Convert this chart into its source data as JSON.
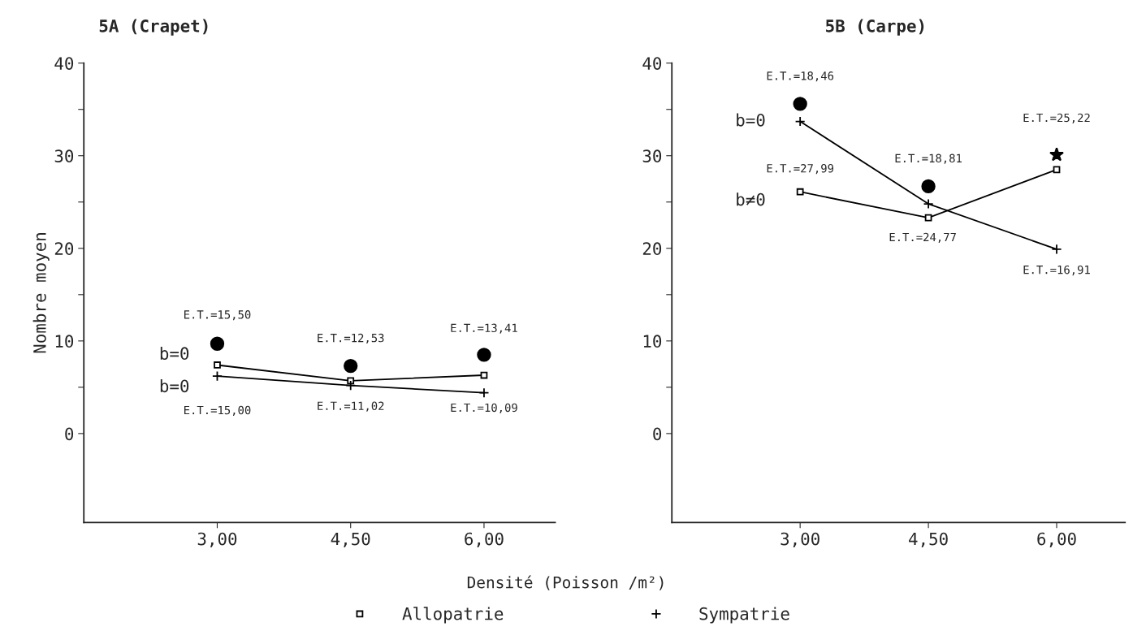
{
  "chart_data": [
    {
      "type": "line",
      "title": "5A (Crapet)",
      "xlabel": "Densité (Poisson /m²)",
      "ylabel": "Nombre moyen",
      "x": [
        3,
        4.5,
        6
      ],
      "xlim": [
        1.5,
        6.8
      ],
      "xticks": [
        {
          "value": 3,
          "label": "3,00"
        },
        {
          "value": 4.5,
          "label": "4,50"
        },
        {
          "value": 6,
          "label": "6,00"
        }
      ],
      "ylim": [
        -9.6,
        40
      ],
      "yticks": [
        0,
        {
          "value": 5,
          "label": null
        },
        10,
        {
          "value": 15,
          "label": null
        },
        20,
        {
          "value": 25,
          "label": null
        },
        30,
        {
          "value": 35,
          "label": null
        },
        40
      ],
      "series": [
        {
          "name": "Allopatrie",
          "color": "#000000",
          "marker": "square",
          "values": [
            7.4,
            5.7,
            6.3
          ]
        },
        {
          "name": "Sympatrie",
          "color": "#000000",
          "marker": "cross",
          "values": [
            6.2,
            5.2,
            4.4
          ]
        },
        {
          "type": "scatter",
          "color": "#000000",
          "marker": "circle",
          "values": [
            9.7,
            7.3,
            8.5
          ]
        }
      ],
      "annotations": [
        {
          "text": "E.T.=15,50",
          "x": 3,
          "y": 9.7
        },
        {
          "text": "E.T.=12,53",
          "x": 4.5,
          "y": 7.3
        },
        {
          "text": "E.T.=13,41",
          "x": 6,
          "y": 8.5
        },
        {
          "text": "b=0",
          "x": 3,
          "y": 7.4
        },
        {
          "text": "b=0",
          "x": 3,
          "y": 6.2
        },
        {
          "text": "E.T.=15,00",
          "x": 3,
          "y": 6.2
        },
        {
          "text": "E.T.=11,02",
          "x": 4.5,
          "y": 5.2
        },
        {
          "text": "E.T.=10,09",
          "x": 6,
          "y": 4.4
        }
      ],
      "legend": "bottom",
      "grid": false
    },
    {
      "type": "line",
      "title": "5B (Carpe)",
      "x": [
        3,
        4.5,
        6
      ],
      "xlim": [
        1.5,
        6.8
      ],
      "xticks": [
        {
          "value": 3,
          "label": "3,00"
        },
        {
          "value": 4.5,
          "label": "4,50"
        },
        {
          "value": 6,
          "label": "6,00"
        }
      ],
      "ylim": [
        -9.6,
        40
      ],
      "yticks": [
        0,
        {
          "value": 5,
          "label": null
        },
        10,
        {
          "value": 15,
          "label": null
        },
        20,
        {
          "value": 25,
          "label": null
        },
        30,
        {
          "value": 35,
          "label": null
        },
        40
      ],
      "series": [
        {
          "color": "#000000",
          "marker": "square",
          "values": [
            26.1,
            23.3,
            28.5
          ]
        },
        {
          "color": "#000000",
          "marker": "cross",
          "values": [
            33.7,
            24.8,
            19.9
          ]
        },
        {
          "type": "scatter",
          "color": "#000000",
          "marker": "circle",
          "values": [
            35.6,
            26.7,
            null
          ]
        },
        {
          "type": "scatter",
          "color": "#000000",
          "marker": "star",
          "values": [
            null,
            null,
            30.1
          ]
        }
      ],
      "annotations": [
        {
          "text": "E.T.=18,46",
          "x": 3,
          "y": 35.6
        },
        {
          "text": "b=0",
          "x": 3,
          "y": 33.7
        },
        {
          "text": "E.T.=27,99",
          "x": 3,
          "y": 26.1
        },
        {
          "text": "b≠0",
          "x": 3,
          "y": 26.1
        },
        {
          "text": "E.T.=18,81",
          "x": 4.5,
          "y": 26.7
        },
        {
          "text": "E.T.=24,77",
          "x": 4.5,
          "y": 23.3
        },
        {
          "text": "E.T.=25,22",
          "x": 6,
          "y": 30.1
        },
        {
          "text": "E.T.=16,91",
          "x": 6,
          "y": 19.9
        }
      ],
      "grid": false
    }
  ]
}
